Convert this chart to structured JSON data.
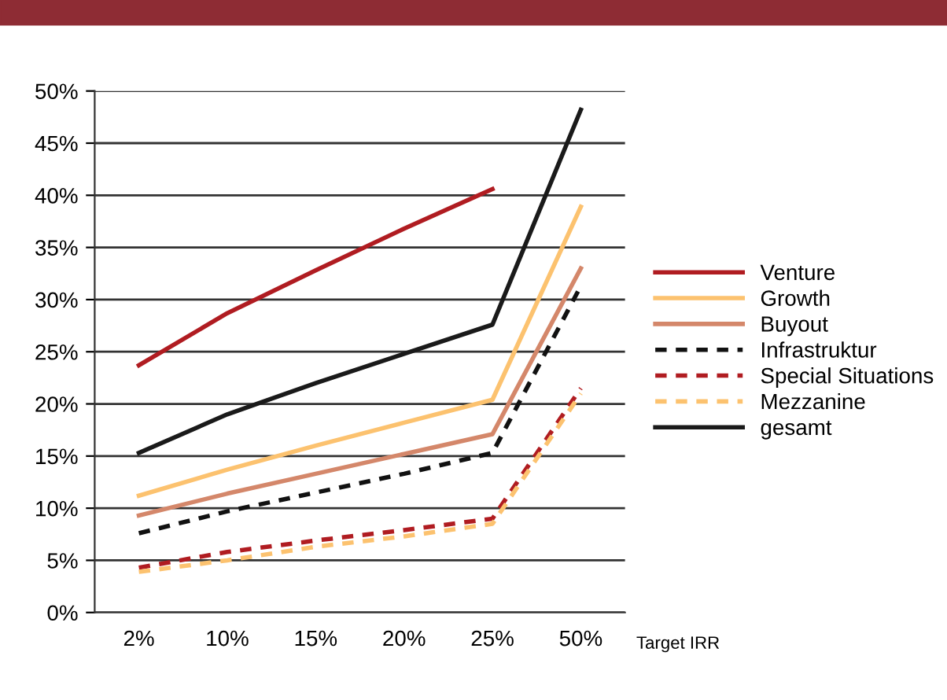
{
  "chart_data": {
    "type": "line",
    "xlabel": "Target IRR",
    "categories": [
      "2%",
      "10%",
      "15%",
      "20%",
      "25%",
      "50%"
    ],
    "ylim": [
      0,
      50
    ],
    "yticks": [
      {
        "value": 0,
        "label": "0%"
      },
      {
        "value": 5,
        "label": "5%"
      },
      {
        "value": 10,
        "label": "10%"
      },
      {
        "value": 15,
        "label": "15%"
      },
      {
        "value": 20,
        "label": "20%"
      },
      {
        "value": 25,
        "label": "25%"
      },
      {
        "value": 30,
        "label": "30%"
      },
      {
        "value": 35,
        "label": "35%"
      },
      {
        "value": 40,
        "label": "40%"
      },
      {
        "value": 45,
        "label": "45%"
      },
      {
        "value": 50,
        "label": "50%"
      }
    ],
    "grid": "y",
    "legend": "right",
    "marker": "none",
    "series": [
      {
        "name": "Venture",
        "color": "#b01c21",
        "line_style": "solid",
        "values": [
          23.7,
          28.7,
          32.8,
          36.8,
          40.6,
          null
        ]
      },
      {
        "name": "Growth",
        "color": "#fcc26f",
        "line_style": "solid",
        "values": [
          11.2,
          13.7,
          16.0,
          18.2,
          20.4,
          38.9
        ]
      },
      {
        "name": "Buyout",
        "color": "#d4876a",
        "line_style": "solid",
        "values": [
          9.3,
          11.4,
          13.3,
          15.2,
          17.1,
          33.0
        ]
      },
      {
        "name": "Infrastruktur",
        "color": "#111111",
        "line_style": "dashed",
        "values": [
          7.6,
          9.7,
          11.5,
          13.3,
          15.3,
          31.3
        ]
      },
      {
        "name": "Special Situations",
        "color": "#b01c21",
        "line_style": "dashed",
        "values": [
          4.3,
          5.8,
          6.9,
          7.9,
          9.0,
          21.5
        ]
      },
      {
        "name": "Mezzanine",
        "color": "#fcc26f",
        "line_style": "dashed",
        "values": [
          3.9,
          5.0,
          6.3,
          7.3,
          8.5,
          21.0
        ]
      },
      {
        "name": "gesamt",
        "color": "#1a1a1a",
        "line_style": "solid",
        "values": [
          15.3,
          19.0,
          22.0,
          24.8,
          27.6,
          48.2
        ]
      }
    ]
  }
}
